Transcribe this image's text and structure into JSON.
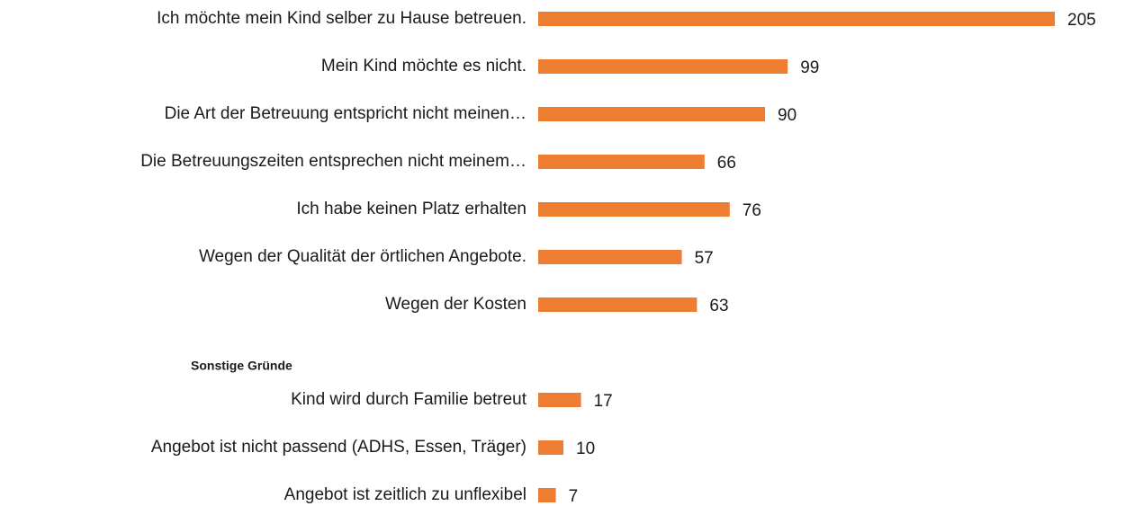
{
  "chart_data": {
    "type": "bar",
    "orientation": "horizontal",
    "categories": [
      "Ich möchte mein Kind selber zu Hause betreuen.",
      "Mein Kind möchte es nicht.",
      "Die Art der Betreuung entspricht nicht meinen…",
      "Die Betreuungszeiten entsprechen nicht meinem…",
      "Ich habe keinen Platz erhalten",
      "Wegen der Qualität der örtlichen Angebote.",
      "Wegen der Kosten",
      null,
      "Kind wird durch Familie betreut",
      "Angebot ist nicht passend (ADHS, Essen, Träger)",
      "Angebot ist zeitlich zu unflexibel"
    ],
    "values": [
      205,
      99,
      90,
      66,
      76,
      57,
      63,
      null,
      17,
      10,
      7
    ],
    "group_label": "Sonstige Gründe",
    "color": "#ed7d31"
  }
}
